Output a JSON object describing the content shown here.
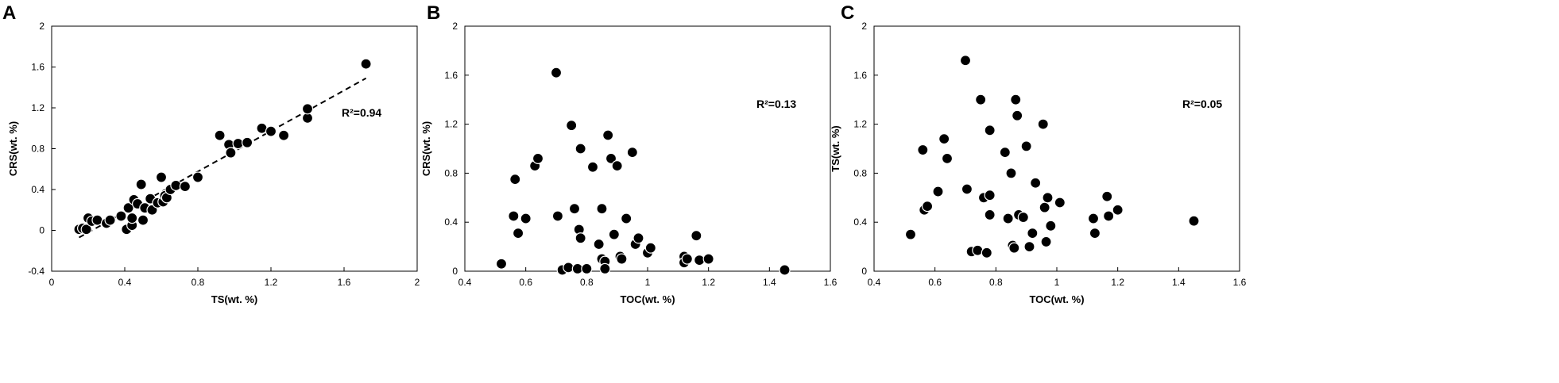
{
  "chart_data": [
    {
      "type": "scatter",
      "panel_label": "A",
      "xlabel": "TS(wt. %)",
      "ylabel": "CRS(wt. %)",
      "xlim": [
        0,
        2
      ],
      "ylim": [
        -0.4,
        2
      ],
      "x_ticks": [
        "0",
        "0.4",
        "0.8",
        "1.2",
        "1.6",
        "2"
      ],
      "y_ticks": [
        "-0.4",
        "0",
        "0.4",
        "0.8",
        "1.2",
        "1.6",
        "2"
      ],
      "annotation": "R²=0.94",
      "trendline": {
        "x": [
          0.15,
          1.72
        ],
        "y": [
          -0.07,
          1.49
        ]
      },
      "points": {
        "x": [
          0.15,
          0.17,
          0.19,
          0.2,
          0.22,
          0.25,
          0.3,
          0.32,
          0.38,
          0.41,
          0.42,
          0.44,
          0.44,
          0.45,
          0.47,
          0.49,
          0.5,
          0.51,
          0.54,
          0.55,
          0.58,
          0.6,
          0.61,
          0.62,
          0.63,
          0.65,
          0.68,
          0.73,
          0.8,
          0.92,
          0.97,
          0.98,
          1.02,
          1.07,
          1.15,
          1.2,
          1.27,
          1.4,
          1.4,
          1.72
        ],
        "y": [
          0.01,
          0.02,
          0.01,
          0.12,
          0.09,
          0.1,
          0.07,
          0.1,
          0.14,
          0.01,
          0.22,
          0.05,
          0.12,
          0.3,
          0.26,
          0.45,
          0.1,
          0.22,
          0.31,
          0.2,
          0.27,
          0.52,
          0.28,
          0.34,
          0.32,
          0.4,
          0.44,
          0.43,
          0.52,
          0.93,
          0.84,
          0.76,
          0.85,
          0.86,
          1.0,
          0.97,
          0.93,
          1.1,
          1.19,
          1.63
        ]
      }
    },
    {
      "type": "scatter",
      "panel_label": "B",
      "xlabel": "TOC(wt. %)",
      "ylabel": "CRS(wt. %)",
      "xlim": [
        0.4,
        1.6
      ],
      "ylim": [
        0,
        2
      ],
      "x_ticks": [
        "0.4",
        "0.6",
        "0.8",
        "1",
        "1.2",
        "1.4",
        "1.6"
      ],
      "y_ticks": [
        "0",
        "0.4",
        "0.8",
        "1.2",
        "1.6",
        "2"
      ],
      "annotation": "R²=0.13",
      "points": {
        "x": [
          0.52,
          0.56,
          0.565,
          0.575,
          0.6,
          0.63,
          0.64,
          0.7,
          0.705,
          0.72,
          0.74,
          0.75,
          0.76,
          0.77,
          0.775,
          0.78,
          0.78,
          0.8,
          0.82,
          0.84,
          0.85,
          0.85,
          0.86,
          0.86,
          0.87,
          0.88,
          0.89,
          0.9,
          0.91,
          0.915,
          0.93,
          0.95,
          0.96,
          0.97,
          1.0,
          1.01,
          1.12,
          1.12,
          1.13,
          1.16,
          1.17,
          1.2,
          1.45
        ],
        "y": [
          0.06,
          0.45,
          0.75,
          0.31,
          0.43,
          0.86,
          0.92,
          1.62,
          0.45,
          0.01,
          0.03,
          1.19,
          0.51,
          0.02,
          0.34,
          0.27,
          1.0,
          0.02,
          0.85,
          0.22,
          0.51,
          0.1,
          0.08,
          0.02,
          1.11,
          0.92,
          0.3,
          0.86,
          0.12,
          0.1,
          0.43,
          0.97,
          0.22,
          0.27,
          0.15,
          0.19,
          0.12,
          0.07,
          0.1,
          0.29,
          0.09,
          0.1,
          0.01
        ]
      }
    },
    {
      "type": "scatter",
      "panel_label": "C",
      "xlabel": "TOC(wt. %)",
      "ylabel": "TS(wt. %)",
      "xlim": [
        0.4,
        1.6
      ],
      "ylim": [
        0,
        2
      ],
      "x_ticks": [
        "0.4",
        "0.6",
        "0.8",
        "1",
        "1.2",
        "1.4",
        "1.6"
      ],
      "y_ticks": [
        "0",
        "0.4",
        "0.8",
        "1.2",
        "1.6",
        "2"
      ],
      "annotation": "R²=0.05",
      "points": {
        "x": [
          0.52,
          0.56,
          0.565,
          0.575,
          0.61,
          0.63,
          0.64,
          0.7,
          0.705,
          0.72,
          0.74,
          0.75,
          0.76,
          0.77,
          0.78,
          0.78,
          0.78,
          0.83,
          0.84,
          0.85,
          0.855,
          0.86,
          0.865,
          0.87,
          0.875,
          0.89,
          0.9,
          0.91,
          0.92,
          0.93,
          0.955,
          0.96,
          0.965,
          0.97,
          0.98,
          1.01,
          1.12,
          1.125,
          1.165,
          1.17,
          1.2,
          1.45
        ],
        "y": [
          0.3,
          0.99,
          0.5,
          0.53,
          0.65,
          1.08,
          0.92,
          1.72,
          0.67,
          0.16,
          0.17,
          1.4,
          0.6,
          0.15,
          0.62,
          0.46,
          1.15,
          0.97,
          0.43,
          0.8,
          0.21,
          0.19,
          1.4,
          1.27,
          0.46,
          0.44,
          1.02,
          0.2,
          0.31,
          0.72,
          1.2,
          0.52,
          0.24,
          0.6,
          0.37,
          0.56,
          0.43,
          0.31,
          0.61,
          0.45,
          0.5,
          0.41
        ]
      }
    }
  ]
}
